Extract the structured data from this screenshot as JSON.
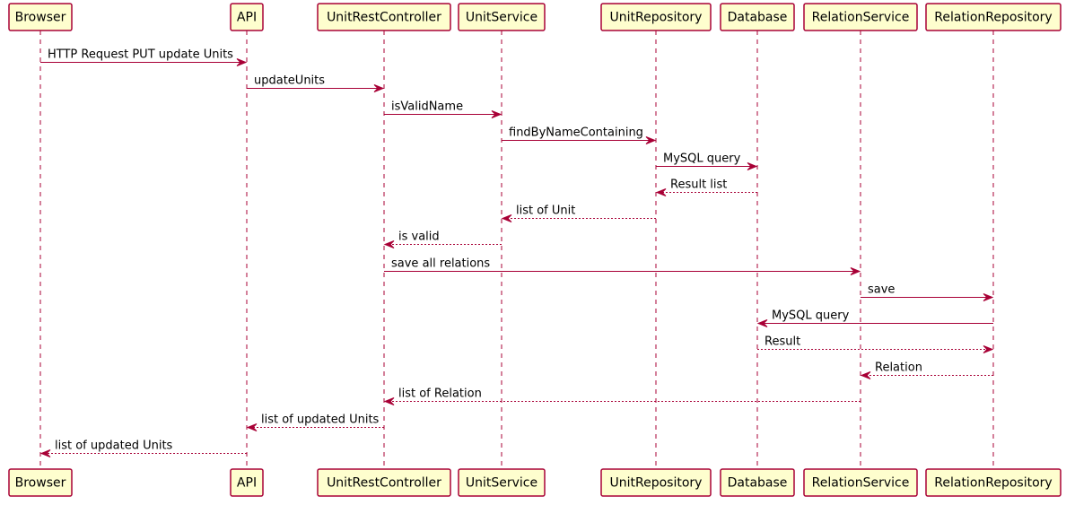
{
  "diagram": {
    "type": "sequence",
    "colors": {
      "participant_fill": "#FEFECE",
      "line": "#A80036",
      "text": "#000000",
      "background": "#FFFFFF"
    },
    "participants": [
      {
        "id": "browser",
        "label": "Browser"
      },
      {
        "id": "api",
        "label": "API"
      },
      {
        "id": "unitrestcontroller",
        "label": "UnitRestController"
      },
      {
        "id": "unitservice",
        "label": "UnitService"
      },
      {
        "id": "unitrepository",
        "label": "UnitRepository"
      },
      {
        "id": "database",
        "label": "Database"
      },
      {
        "id": "relationservice",
        "label": "RelationService"
      },
      {
        "id": "relationrepository",
        "label": "RelationRepository"
      }
    ],
    "messages": [
      {
        "from": "browser",
        "to": "api",
        "label": "HTTP Request PUT update Units",
        "style": "sync"
      },
      {
        "from": "api",
        "to": "unitrestcontroller",
        "label": "updateUnits",
        "style": "sync"
      },
      {
        "from": "unitrestcontroller",
        "to": "unitservice",
        "label": "isValidName",
        "style": "sync"
      },
      {
        "from": "unitservice",
        "to": "unitrepository",
        "label": "findByNameContaining",
        "style": "sync"
      },
      {
        "from": "unitrepository",
        "to": "database",
        "label": "MySQL query",
        "style": "sync"
      },
      {
        "from": "database",
        "to": "unitrepository",
        "label": "Result list",
        "style": "return"
      },
      {
        "from": "unitrepository",
        "to": "unitservice",
        "label": "list of Unit",
        "style": "return"
      },
      {
        "from": "unitservice",
        "to": "unitrestcontroller",
        "label": "is valid",
        "style": "return"
      },
      {
        "from": "unitrestcontroller",
        "to": "relationservice",
        "label": "save all relations",
        "style": "sync"
      },
      {
        "from": "relationservice",
        "to": "relationrepository",
        "label": "save",
        "style": "sync"
      },
      {
        "from": "relationrepository",
        "to": "database",
        "label": "MySQL query",
        "style": "sync"
      },
      {
        "from": "database",
        "to": "relationrepository",
        "label": "Result",
        "style": "return"
      },
      {
        "from": "relationrepository",
        "to": "relationservice",
        "label": "Relation",
        "style": "return"
      },
      {
        "from": "relationservice",
        "to": "unitrestcontroller",
        "label": "list of Relation",
        "style": "return"
      },
      {
        "from": "unitrestcontroller",
        "to": "api",
        "label": "list of updated Units",
        "style": "return"
      },
      {
        "from": "api",
        "to": "browser",
        "label": "list of updated Units",
        "style": "return"
      }
    ]
  }
}
